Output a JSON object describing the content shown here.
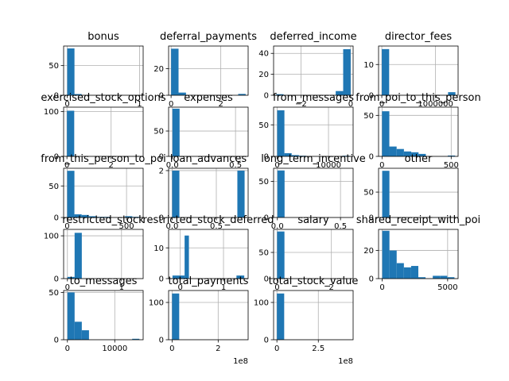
{
  "figure": {
    "background": "#ffffff",
    "bar_color": "#1f77b4",
    "grid_color": "#b0b0b0"
  },
  "chart_data": [
    {
      "type": "bar",
      "title": "bonus",
      "xlim": [
        -0.05,
        1.05
      ],
      "ylim": [
        0,
        83
      ],
      "bins": [
        0.0,
        0.1,
        0.2,
        0.3,
        0.4,
        0.5,
        0.6,
        0.7,
        0.8,
        0.9,
        1.0
      ],
      "counts": [
        79,
        2,
        0,
        0,
        0,
        0,
        0,
        0,
        0,
        0
      ],
      "xticks": [
        {
          "v": 0,
          "label": "0"
        },
        {
          "v": 1,
          "label": "1"
        }
      ],
      "yticks": [
        {
          "v": 0,
          "label": "0"
        },
        {
          "v": 50,
          "label": "50"
        }
      ],
      "offset_text": ""
    },
    {
      "type": "bar",
      "title": "deferral_payments",
      "xlim": [
        -0.1,
        3.1
      ],
      "ylim": [
        0,
        37
      ],
      "bins": [
        0.0,
        0.3,
        0.6,
        0.9,
        1.2,
        1.5,
        1.8,
        2.1,
        2.4,
        2.7,
        3.0
      ],
      "counts": [
        35,
        2,
        0,
        0,
        0,
        0,
        0,
        0,
        0,
        1
      ],
      "xticks": [
        {
          "v": 0,
          "label": "0"
        },
        {
          "v": 2,
          "label": "2"
        }
      ],
      "yticks": [
        {
          "v": 0,
          "label": "0"
        },
        {
          "v": 20,
          "label": "20"
        }
      ],
      "offset_text": ""
    },
    {
      "type": "bar",
      "title": "deferred_income",
      "xlim": [
        -3.1,
        0.1
      ],
      "ylim": [
        0,
        47
      ],
      "bins": [
        -3.0,
        -2.7,
        -2.4,
        -2.1,
        -1.8,
        -1.5,
        -1.2,
        -0.9,
        -0.6,
        -0.3,
        0.0
      ],
      "counts": [
        1,
        0,
        0,
        0,
        0,
        0,
        0,
        0,
        4,
        44
      ],
      "xticks": [
        {
          "v": -2,
          "label": "−2"
        },
        {
          "v": 0,
          "label": "0"
        }
      ],
      "yticks": [
        {
          "v": 0,
          "label": "0"
        },
        {
          "v": 20,
          "label": "20"
        },
        {
          "v": 40,
          "label": "40"
        }
      ],
      "offset_text": ""
    },
    {
      "type": "bar",
      "title": "director_fees",
      "xlim": [
        -60000,
        1420000
      ],
      "ylim": [
        0,
        16
      ],
      "bins": [
        0,
        137000,
        274000,
        411000,
        548000,
        685000,
        822000,
        959000,
        1096000,
        1233000,
        1370000
      ],
      "counts": [
        15,
        0,
        0,
        0,
        0,
        0,
        0,
        0,
        0,
        1
      ],
      "xticks": [
        {
          "v": 0,
          "label": "0"
        },
        {
          "v": 1000000,
          "label": "1000000"
        }
      ],
      "yticks": [
        {
          "v": 0,
          "label": "0"
        },
        {
          "v": 10,
          "label": "10"
        }
      ],
      "offset_text": ""
    },
    {
      "type": "bar",
      "title": "exercised_stock_options",
      "xlim": [
        -0.15,
        3.45
      ],
      "ylim": [
        0,
        110
      ],
      "bins": [
        0.0,
        0.33,
        0.66,
        0.99,
        1.32,
        1.65,
        1.98,
        2.31,
        2.64,
        2.97,
        3.3
      ],
      "counts": [
        102,
        0,
        0,
        0,
        0,
        0,
        0,
        0,
        0,
        0
      ],
      "xticks": [
        {
          "v": 0,
          "label": "0"
        },
        {
          "v": 2,
          "label": "2"
        }
      ],
      "yticks": [
        {
          "v": 0,
          "label": "0"
        },
        {
          "v": 100,
          "label": "100"
        }
      ],
      "offset_text": ""
    },
    {
      "type": "bar",
      "title": "expenses",
      "xlim": [
        -0.03,
        0.6
      ],
      "ylim": [
        0,
        97
      ],
      "bins": [
        0.0,
        0.057,
        0.114,
        0.171,
        0.228,
        0.285,
        0.342,
        0.399,
        0.456,
        0.513,
        0.57
      ],
      "counts": [
        94,
        0,
        0,
        0,
        0,
        0,
        0,
        0,
        0,
        0
      ],
      "xticks": [
        {
          "v": 0,
          "label": "0.0"
        },
        {
          "v": 0.5,
          "label": "0.5"
        }
      ],
      "yticks": [
        {
          "v": 0,
          "label": "0"
        },
        {
          "v": 50,
          "label": "50"
        }
      ],
      "offset_text": ""
    },
    {
      "type": "bar",
      "title": "from_messages",
      "xlim": [
        -700,
        14800
      ],
      "ylim": [
        0,
        78
      ],
      "bins": [
        0,
        1410,
        2820,
        4230,
        5640,
        7050,
        8460,
        9870,
        11280,
        12690,
        14100
      ],
      "counts": [
        73,
        5,
        2,
        1,
        0,
        0,
        0,
        0,
        0,
        1
      ],
      "xticks": [
        {
          "v": 0,
          "label": "0"
        },
        {
          "v": 10000,
          "label": "10000"
        }
      ],
      "yticks": [
        {
          "v": 0,
          "label": "0"
        },
        {
          "v": 50,
          "label": "50"
        }
      ],
      "offset_text": ""
    },
    {
      "type": "bar",
      "title": "from_poi_to_this_person",
      "xlim": [
        -25,
        550
      ],
      "ylim": [
        0,
        60
      ],
      "bins": [
        0,
        52.8,
        105.6,
        158.4,
        211.2,
        264,
        316.8,
        369.6,
        422.4,
        475.2,
        528
      ],
      "counts": [
        55,
        12,
        9,
        6,
        5,
        3,
        0,
        0,
        0,
        1
      ],
      "xticks": [
        {
          "v": 0,
          "label": "0"
        },
        {
          "v": 500,
          "label": "500"
        }
      ],
      "yticks": [
        {
          "v": 0,
          "label": "0"
        },
        {
          "v": 50,
          "label": "50"
        }
      ],
      "offset_text": ""
    },
    {
      "type": "bar",
      "title": "from_this_person_to_poi",
      "xlim": [
        -30,
        640
      ],
      "ylim": [
        0,
        78
      ],
      "bins": [
        0,
        60.9,
        121.8,
        182.7,
        243.6,
        304.5,
        365.4,
        426.3,
        487.2,
        548.1,
        609
      ],
      "counts": [
        74,
        5,
        4,
        2,
        1,
        1,
        0,
        0,
        2,
        1
      ],
      "xticks": [
        {
          "v": 0,
          "label": "0"
        },
        {
          "v": 500,
          "label": "500"
        }
      ],
      "yticks": [
        {
          "v": 0,
          "label": "0"
        },
        {
          "v": 50,
          "label": "50"
        }
      ],
      "offset_text": ""
    },
    {
      "type": "bar",
      "title": "loan_advances",
      "xlim": [
        -0.04,
        0.86
      ],
      "ylim": [
        0,
        2.1
      ],
      "bins": [
        0.0,
        0.082,
        0.164,
        0.246,
        0.328,
        0.41,
        0.492,
        0.574,
        0.656,
        0.738,
        0.82
      ],
      "counts": [
        2,
        0,
        0,
        0,
        0,
        0,
        0,
        0,
        0,
        2
      ],
      "xticks": [
        {
          "v": 0,
          "label": "0.0"
        },
        {
          "v": 0.5,
          "label": "0.5"
        }
      ],
      "yticks": [
        {
          "v": 0,
          "label": "0"
        },
        {
          "v": 2,
          "label": "2"
        }
      ],
      "offset_text": ""
    },
    {
      "type": "bar",
      "title": "long_term_incentive",
      "xlim": [
        -0.03,
        0.6
      ],
      "ylim": [
        0,
        68
      ],
      "bins": [
        0.0,
        0.057,
        0.114,
        0.171,
        0.228,
        0.285,
        0.342,
        0.399,
        0.456,
        0.513,
        0.57
      ],
      "counts": [
        65,
        0,
        0,
        0,
        0,
        0,
        0,
        0,
        0,
        0
      ],
      "xticks": [
        {
          "v": 0,
          "label": "0.0"
        },
        {
          "v": 0.5,
          "label": "0.5"
        }
      ],
      "yticks": [
        {
          "v": 0,
          "label": "0"
        },
        {
          "v": 50,
          "label": "50"
        }
      ],
      "offset_text": ""
    },
    {
      "type": "bar",
      "title": "other",
      "xlim": [
        -0.05,
        1.05
      ],
      "ylim": [
        0,
        97
      ],
      "bins": [
        0.0,
        0.1,
        0.2,
        0.3,
        0.4,
        0.5,
        0.6,
        0.7,
        0.8,
        0.9,
        1.0
      ],
      "counts": [
        92,
        0,
        0,
        0,
        0,
        0,
        0,
        0,
        0,
        0
      ],
      "xticks": [],
      "yticks": [
        {
          "v": 0,
          "label": "0"
        },
        {
          "v": 50,
          "label": "50"
        }
      ],
      "offset_text": ""
    },
    {
      "type": "bar",
      "title": "restricted_stock",
      "xlim": [
        -0.07,
        1.4
      ],
      "ylim": [
        0,
        115
      ],
      "bins": [
        0.0,
        0.133,
        0.266,
        0.399,
        0.532,
        0.665,
        0.798,
        0.931,
        1.064,
        1.197,
        1.33
      ],
      "counts": [
        4,
        107,
        0,
        0,
        0,
        0,
        0,
        0,
        0,
        0
      ],
      "xticks": [
        {
          "v": 0,
          "label": "0"
        },
        {
          "v": 1,
          "label": "1"
        }
      ],
      "yticks": [
        {
          "v": 0,
          "label": "0"
        },
        {
          "v": 100,
          "label": "100"
        }
      ],
      "offset_text": ""
    },
    {
      "type": "bar",
      "title": "restricted_stock_deferred",
      "xlim": [
        -0.27,
        1.57
      ],
      "ylim": [
        0,
        16
      ],
      "bins": [
        -0.18,
        -0.0,
        0.1,
        0.2,
        0.3,
        0.5,
        0.7,
        0.9,
        1.1,
        1.3,
        1.48
      ],
      "counts": [
        1,
        1,
        14,
        0,
        0,
        0,
        0,
        0,
        0,
        1
      ],
      "xticks": [
        {
          "v": 0,
          "label": "0"
        },
        {
          "v": 1,
          "label": "1"
        }
      ],
      "yticks": [
        {
          "v": 0,
          "label": "0"
        },
        {
          "v": 10,
          "label": "10"
        }
      ],
      "offset_text": ""
    },
    {
      "type": "bar",
      "title": "salary",
      "xlim": [
        -0.13,
        2.8
      ],
      "ylim": [
        0,
        94
      ],
      "bins": [
        0.0,
        0.27,
        0.54,
        0.81,
        1.08,
        1.35,
        1.62,
        1.89,
        2.16,
        2.43,
        2.7
      ],
      "counts": [
        90,
        0,
        0,
        0,
        0,
        0,
        0,
        0,
        0,
        0
      ],
      "xticks": [
        {
          "v": 0,
          "label": "0"
        },
        {
          "v": 2,
          "label": "2"
        }
      ],
      "yticks": [
        {
          "v": 0,
          "label": "0"
        },
        {
          "v": 50,
          "label": "50"
        }
      ],
      "offset_text": ""
    },
    {
      "type": "bar",
      "title": "shared_receipt_with_poi",
      "xlim": [
        -280,
        5800
      ],
      "ylim": [
        0,
        35
      ],
      "bins": [
        0,
        552,
        1104,
        1656,
        2208,
        2760,
        3312,
        3864,
        4416,
        4968,
        5520
      ],
      "counts": [
        34,
        20,
        11,
        8,
        9,
        1,
        0,
        2,
        2,
        1
      ],
      "xticks": [
        {
          "v": 0,
          "label": "0"
        },
        {
          "v": 5000,
          "label": "5000"
        }
      ],
      "yticks": [
        {
          "v": 0,
          "label": "0"
        },
        {
          "v": 20,
          "label": "20"
        }
      ],
      "offset_text": ""
    },
    {
      "type": "bar",
      "title": "to_messages",
      "xlim": [
        -800,
        16000
      ],
      "ylim": [
        0,
        52
      ],
      "bins": [
        0,
        1520,
        3040,
        4560,
        6080,
        7600,
        9120,
        10640,
        12160,
        13680,
        15200
      ],
      "counts": [
        50,
        19,
        10,
        0,
        0,
        0,
        0,
        0,
        0,
        1
      ],
      "xticks": [
        {
          "v": 0,
          "label": "0"
        },
        {
          "v": 10000,
          "label": "10000"
        }
      ],
      "yticks": [
        {
          "v": 0,
          "label": "0"
        },
        {
          "v": 50,
          "label": "50"
        }
      ],
      "offset_text": ""
    },
    {
      "type": "bar",
      "title": "total_payments",
      "xlim": [
        -0.15,
        3.3
      ],
      "ylim": [
        0,
        132
      ],
      "bins": [
        0.0,
        0.31,
        0.62,
        0.93,
        1.24,
        1.55,
        1.86,
        2.17,
        2.48,
        2.79,
        3.1
      ],
      "counts": [
        124,
        0,
        0,
        0,
        0,
        0,
        0,
        0,
        0,
        0
      ],
      "xticks": [
        {
          "v": 0,
          "label": "0"
        },
        {
          "v": 2,
          "label": "2"
        }
      ],
      "yticks": [
        {
          "v": 0,
          "label": "0"
        },
        {
          "v": 100,
          "label": "100"
        }
      ],
      "offset_text": "1e8"
    },
    {
      "type": "bar",
      "title": "total_stock_value",
      "xlim": [
        -0.2,
        4.6
      ],
      "ylim": [
        0,
        132
      ],
      "bins": [
        0.0,
        0.44,
        0.88,
        1.32,
        1.76,
        2.2,
        2.64,
        3.08,
        3.52,
        3.96,
        4.4
      ],
      "counts": [
        124,
        0,
        0,
        0,
        0,
        0,
        0,
        0,
        0,
        0
      ],
      "xticks": [
        {
          "v": 0,
          "label": "0"
        },
        {
          "v": 2.5,
          "label": "2.5"
        }
      ],
      "yticks": [
        {
          "v": 0,
          "label": "0"
        },
        {
          "v": 100,
          "label": "100"
        }
      ],
      "offset_text": "1e8"
    }
  ]
}
